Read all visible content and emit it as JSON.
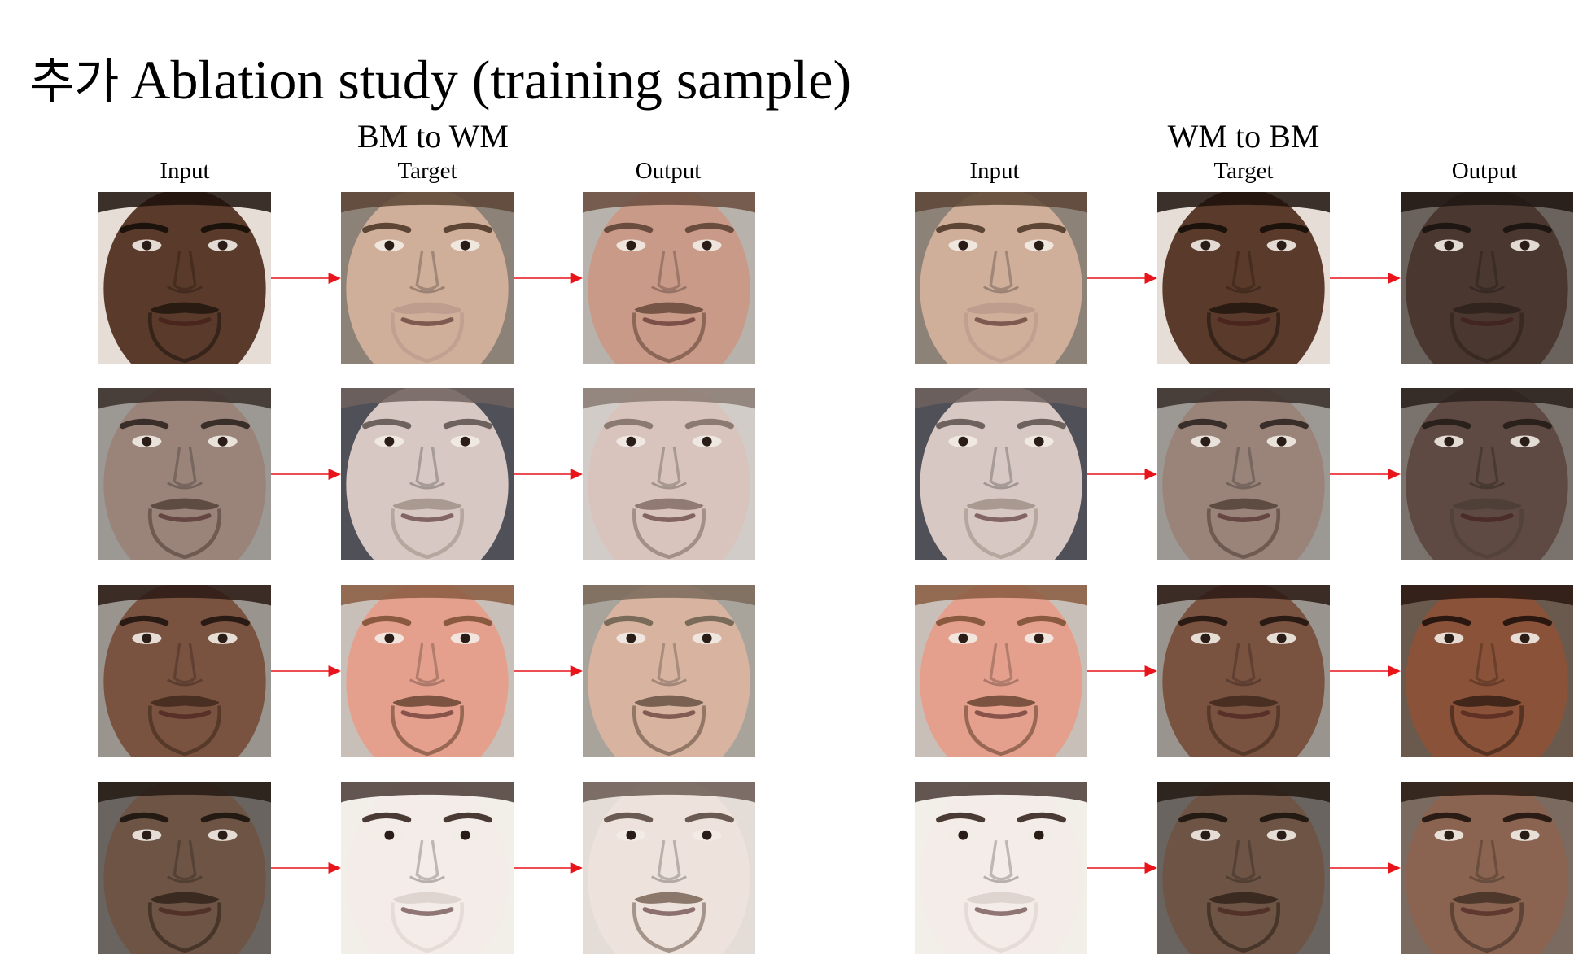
{
  "title": {
    "korean": "추가",
    "text": "Ablation study (training sample)"
  },
  "groups": [
    {
      "id": "bm-to-wm",
      "title": "BM to WM",
      "columns": [
        "Input",
        "Target",
        "Output"
      ],
      "rows": [
        {
          "input": {
            "skin": "#5a3a2a",
            "hair": "#1c120c",
            "beard": "#1a110b",
            "bg": "#e6ddd6"
          },
          "target": {
            "skin": "#cfae9a",
            "hair": "#5c4535",
            "beard": "#b8968a",
            "bg": "#8c8278"
          },
          "output": {
            "skin": "#c99a88",
            "hair": "#6a4c3e",
            "beard": "#5a3c30",
            "bg": "#b8b2ac"
          }
        },
        {
          "input": {
            "skin": "#9a847a",
            "hair": "#3a2e2a",
            "beard": "#4a3830",
            "bg": "#9c9894"
          },
          "target": {
            "skin": "#d8c8c4",
            "hair": "#6e625e",
            "beard": "#9a8a80",
            "bg": "#505058"
          },
          "output": {
            "skin": "#d8c4bc",
            "hair": "#8a7a72",
            "beard": "#7a6258",
            "bg": "#d2ccc8"
          }
        },
        {
          "input": {
            "skin": "#7a5240",
            "hair": "#2a1a14",
            "beard": "#3a2418",
            "bg": "#9a948e"
          },
          "target": {
            "skin": "#e4a08c",
            "hair": "#8a5a40",
            "beard": "#5a3a28",
            "bg": "#c8c0b8"
          },
          "output": {
            "skin": "#d8b4a0",
            "hair": "#7a6a5a",
            "beard": "#5a4638",
            "bg": "#a8a49c"
          }
        },
        {
          "input": {
            "skin": "#6e5444",
            "hair": "#241a14",
            "beard": "#2a1c14",
            "bg": "#6a6460"
          },
          "target": {
            "skin": "#f4ece8",
            "hair": "#4a3a34",
            "beard": "#d8cec8",
            "bg": "#f2eee8"
          },
          "output": {
            "skin": "#eee2dc",
            "hair": "#6a5a52",
            "beard": "#6a5446",
            "bg": "#e4dcd6"
          }
        }
      ]
    },
    {
      "id": "wm-to-bm",
      "title": "WM to BM",
      "columns": [
        "Input",
        "Target",
        "Output"
      ],
      "rows": [
        {
          "input": {
            "skin": "#cfae9a",
            "hair": "#5c4535",
            "beard": "#b8968a",
            "bg": "#8c8278"
          },
          "target": {
            "skin": "#5a3a2a",
            "hair": "#1c120c",
            "beard": "#1a110b",
            "bg": "#e6ddd6"
          },
          "output": {
            "skin": "#4a3830",
            "hair": "#1e1612",
            "beard": "#2a1e18",
            "bg": "#6a625c"
          }
        },
        {
          "input": {
            "skin": "#d8c8c4",
            "hair": "#6e625e",
            "beard": "#9a8a80",
            "bg": "#505058"
          },
          "target": {
            "skin": "#9a847a",
            "hair": "#3a2e2a",
            "beard": "#4a3830",
            "bg": "#9c9894"
          },
          "output": {
            "skin": "#5e4a42",
            "hair": "#2a201c",
            "beard": "#4a3c36",
            "bg": "#7a726c"
          }
        },
        {
          "input": {
            "skin": "#e4a08c",
            "hair": "#8a5a40",
            "beard": "#5a3a28",
            "bg": "#c8c0b8"
          },
          "target": {
            "skin": "#7a5240",
            "hair": "#2a1a14",
            "beard": "#3a2418",
            "bg": "#9a948e"
          },
          "output": {
            "skin": "#8a5238",
            "hair": "#2a1810",
            "beard": "#2a1810",
            "bg": "#6a5a4e"
          }
        },
        {
          "input": {
            "skin": "#f4ece8",
            "hair": "#4a3a34",
            "beard": "#d8cec8",
            "bg": "#f2eee8"
          },
          "target": {
            "skin": "#6e5444",
            "hair": "#241a14",
            "beard": "#2a1c14",
            "bg": "#6a6460"
          },
          "output": {
            "skin": "#8a6450",
            "hair": "#2a1c14",
            "beard": "#3a2a20",
            "bg": "#7a6a60"
          }
        }
      ]
    }
  ],
  "arrow_color": "#e8141a"
}
